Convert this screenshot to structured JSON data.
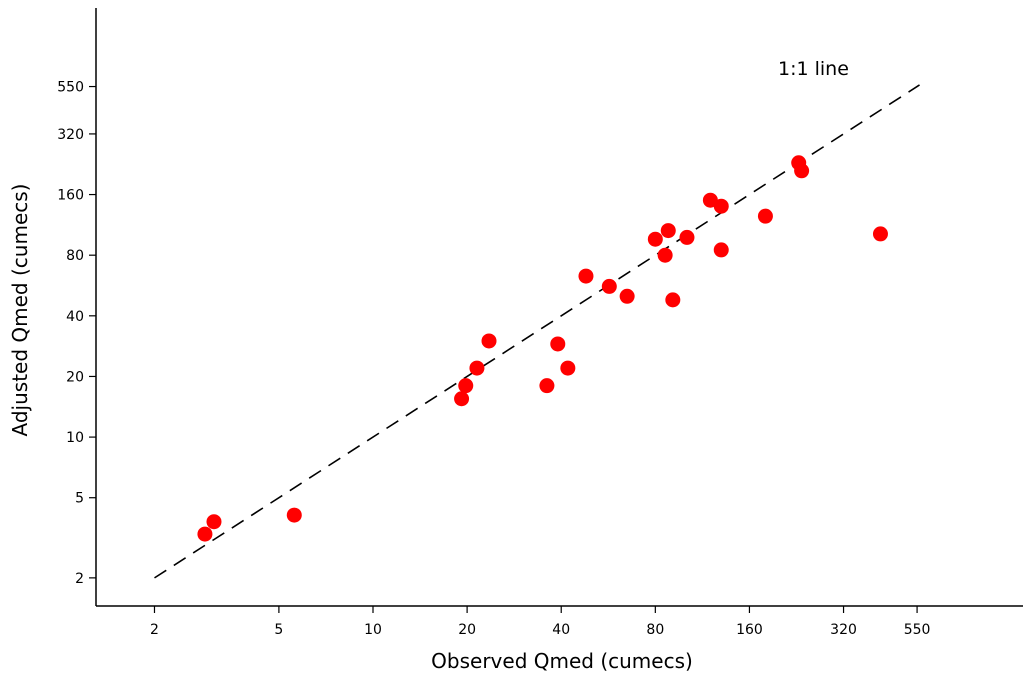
{
  "chart_data": {
    "type": "scatter",
    "xlabel": "Observed Qmed (cumecs)",
    "ylabel": "Adjusted Qmed (cumecs)",
    "x_scale": "log",
    "y_scale": "log",
    "xlim": [
      1.3,
      1200
    ],
    "ylim": [
      1.45,
      1350
    ],
    "x_ticks": [
      2,
      5,
      10,
      20,
      40,
      80,
      160,
      320,
      550
    ],
    "x_tick_labels": [
      "2",
      "5",
      "10",
      "20",
      "40",
      "80",
      "160",
      "320",
      "550"
    ],
    "y_ticks": [
      2,
      5,
      10,
      20,
      40,
      80,
      160,
      320,
      550
    ],
    "y_tick_labels": [
      "2",
      "5",
      "10",
      "20",
      "40",
      "80",
      "160",
      "320",
      "550"
    ],
    "grid": false,
    "reference_line": {
      "label": "1:1 line",
      "from": 2,
      "to": 560,
      "color": "#000000",
      "style": "dashed"
    },
    "series": [
      {
        "color": "#ff0000",
        "points": [
          {
            "x": 2.9,
            "y": 3.3
          },
          {
            "x": 3.1,
            "y": 3.8
          },
          {
            "x": 5.6,
            "y": 4.1
          },
          {
            "x": 19.2,
            "y": 15.5
          },
          {
            "x": 19.8,
            "y": 18
          },
          {
            "x": 21.5,
            "y": 22
          },
          {
            "x": 23.5,
            "y": 30
          },
          {
            "x": 36,
            "y": 18
          },
          {
            "x": 39,
            "y": 29
          },
          {
            "x": 42,
            "y": 22
          },
          {
            "x": 48,
            "y": 63
          },
          {
            "x": 57,
            "y": 56
          },
          {
            "x": 65,
            "y": 50
          },
          {
            "x": 80,
            "y": 96
          },
          {
            "x": 86,
            "y": 80
          },
          {
            "x": 88,
            "y": 106
          },
          {
            "x": 91,
            "y": 48
          },
          {
            "x": 101,
            "y": 98
          },
          {
            "x": 120,
            "y": 150
          },
          {
            "x": 130,
            "y": 140
          },
          {
            "x": 130,
            "y": 85
          },
          {
            "x": 180,
            "y": 125
          },
          {
            "x": 230,
            "y": 230
          },
          {
            "x": 235,
            "y": 210
          },
          {
            "x": 420,
            "y": 102
          }
        ]
      }
    ]
  }
}
